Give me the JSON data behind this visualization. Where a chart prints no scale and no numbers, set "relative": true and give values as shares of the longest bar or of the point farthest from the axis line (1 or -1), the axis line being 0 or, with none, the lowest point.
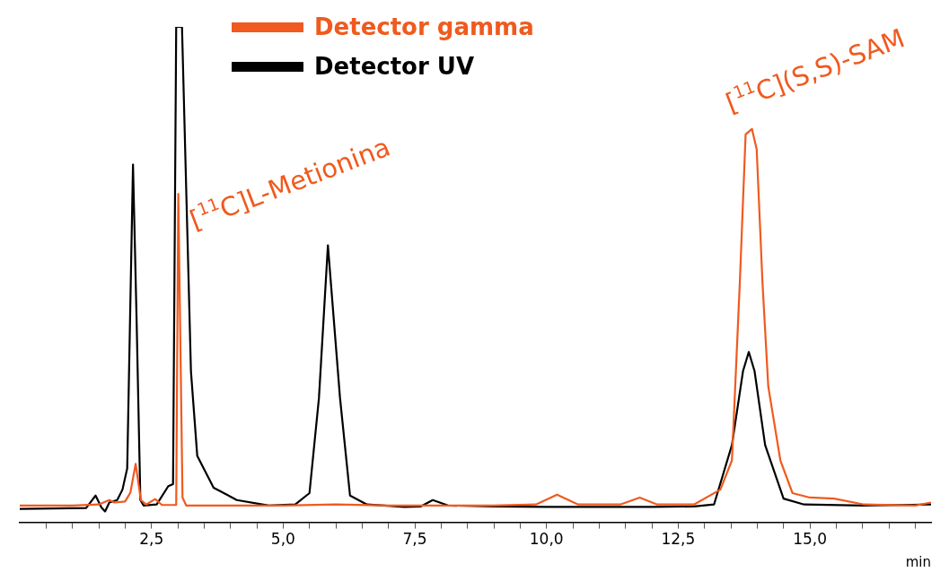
{
  "chart_data": {
    "type": "line",
    "relative": true,
    "xlabel": "min",
    "legend": "top",
    "marker": "none",
    "line_style": "solid",
    "grid": false,
    "xlim": [
      0,
      17.3
    ],
    "xticks": [
      {
        "value": 0.5,
        "label": null
      },
      {
        "value": 1,
        "label": null
      },
      {
        "value": 1.5,
        "label": null
      },
      {
        "value": 2,
        "label": null
      },
      {
        "value": 2.5,
        "label": "2,5"
      },
      {
        "value": 3,
        "label": null
      },
      {
        "value": 3.5,
        "label": null
      },
      {
        "value": 4,
        "label": null
      },
      {
        "value": 4.5,
        "label": null
      },
      {
        "value": 5,
        "label": "5,0"
      },
      {
        "value": 5.5,
        "label": null
      },
      {
        "value": 6,
        "label": null
      },
      {
        "value": 6.5,
        "label": null
      },
      {
        "value": 7,
        "label": null
      },
      {
        "value": 7.5,
        "label": "7,5"
      },
      {
        "value": 8,
        "label": null
      },
      {
        "value": 8.5,
        "label": null
      },
      {
        "value": 9,
        "label": null
      },
      {
        "value": 9.5,
        "label": null
      },
      {
        "value": 10,
        "label": "10,0"
      },
      {
        "value": 10.5,
        "label": null
      },
      {
        "value": 11,
        "label": null
      },
      {
        "value": 11.5,
        "label": null
      },
      {
        "value": 12,
        "label": null
      },
      {
        "value": 12.5,
        "label": "12,5"
      },
      {
        "value": 13,
        "label": null
      },
      {
        "value": 13.5,
        "label": null
      },
      {
        "value": 14,
        "label": null
      },
      {
        "value": 14.5,
        "label": null
      },
      {
        "value": 15,
        "label": "15,0"
      },
      {
        "value": 15.5,
        "label": null
      },
      {
        "value": 16,
        "label": null
      },
      {
        "value": 16.5,
        "label": null
      },
      {
        "value": 17,
        "label": null
      }
    ],
    "annotations": [
      {
        "text": "[$^{11}$C]L-Metionina",
        "x": 3.01,
        "y": 0.663
      },
      {
        "text": "[$^{11}$C](S,S)-SAM",
        "x": 13.9,
        "y": 0.794
      }
    ],
    "series": [
      {
        "name": "Detector gamma",
        "color": "#f05a1e",
        "type": "line",
        "x": [
          0,
          1.0,
          1.5,
          1.7,
          1.8,
          2.0,
          2.1,
          2.2,
          2.3,
          2.4,
          2.57,
          2.7,
          2.97,
          3.01,
          3.09,
          3.16,
          4.0,
          5.0,
          6.0,
          7.0,
          8.0,
          9.0,
          9.8,
          10.2,
          10.6,
          11.4,
          11.77,
          12.1,
          12.8,
          13.3,
          13.52,
          13.67,
          13.78,
          13.9,
          13.99,
          14.1,
          14.21,
          14.44,
          14.67,
          15.0,
          15.46,
          16.03,
          17.0,
          17.3
        ],
        "values": [
          0.034,
          0.034,
          0.036,
          0.045,
          0.04,
          0.042,
          0.06,
          0.118,
          0.045,
          0.036,
          0.047,
          0.035,
          0.035,
          0.663,
          0.05,
          0.034,
          0.034,
          0.034,
          0.036,
          0.034,
          0.034,
          0.034,
          0.036,
          0.056,
          0.036,
          0.036,
          0.05,
          0.036,
          0.036,
          0.066,
          0.125,
          0.484,
          0.783,
          0.794,
          0.753,
          0.484,
          0.274,
          0.125,
          0.059,
          0.05,
          0.048,
          0.036,
          0.034,
          0.04
        ]
      },
      {
        "name": "Detector UV",
        "color": "#000000",
        "type": "line",
        "x": [
          0,
          1.26,
          1.44,
          1.55,
          1.62,
          1.7,
          1.85,
          1.95,
          2.04,
          2.15,
          2.22,
          2.29,
          2.35,
          2.6,
          2.82,
          2.91,
          2.97,
          3.08,
          3.25,
          3.37,
          3.68,
          4.12,
          4.73,
          5.23,
          5.5,
          5.68,
          5.85,
          6.08,
          6.27,
          6.59,
          7.3,
          7.61,
          7.84,
          8.13,
          9.0,
          10.0,
          11.0,
          12.0,
          12.8,
          13.18,
          13.52,
          13.73,
          13.84,
          13.95,
          14.15,
          14.5,
          14.89,
          16.0,
          17.3
        ],
        "values": [
          0.027,
          0.029,
          0.054,
          0.03,
          0.022,
          0.04,
          0.045,
          0.066,
          0.109,
          0.722,
          0.4,
          0.045,
          0.034,
          0.036,
          0.073,
          0.077,
          1.0,
          1.0,
          0.305,
          0.134,
          0.07,
          0.045,
          0.034,
          0.036,
          0.059,
          0.251,
          0.559,
          0.251,
          0.054,
          0.036,
          0.031,
          0.032,
          0.045,
          0.034,
          0.032,
          0.031,
          0.031,
          0.031,
          0.032,
          0.036,
          0.156,
          0.305,
          0.344,
          0.305,
          0.156,
          0.048,
          0.036,
          0.034,
          0.036
        ]
      }
    ]
  }
}
